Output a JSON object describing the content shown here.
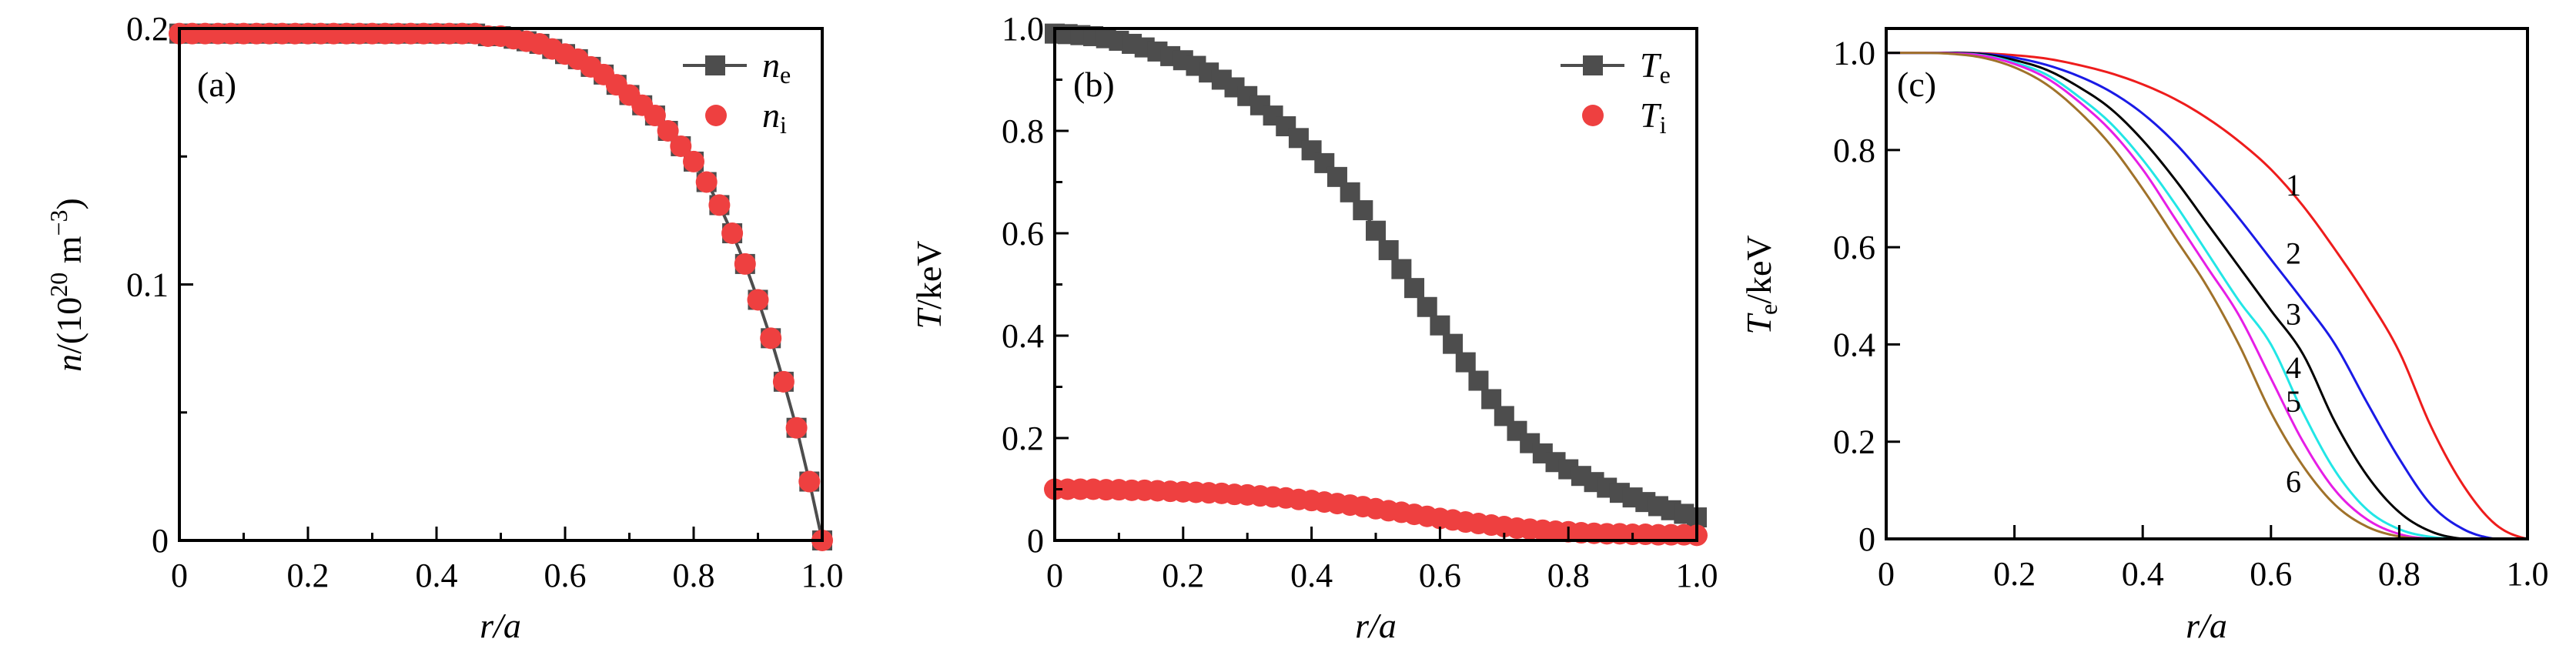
{
  "chart_data": [
    {
      "type": "scatter",
      "panel_label": "(a)",
      "xlabel": "r/a",
      "ylabel": {
        "var": "n",
        "pre": "/(10",
        "exp": "20",
        "unit": " m",
        "uexp": "−3",
        "post": ")"
      },
      "xlim": [
        0,
        1.0
      ],
      "ylim": [
        0,
        0.2
      ],
      "xticks": [
        "0",
        "0.2",
        "0.4",
        "0.6",
        "0.8",
        "1.0"
      ],
      "yticks": [
        "0",
        "0.1",
        "0.2"
      ],
      "x": [
        0,
        0.02,
        0.04,
        0.06,
        0.08,
        0.1,
        0.12,
        0.14,
        0.16,
        0.18,
        0.2,
        0.22,
        0.24,
        0.26,
        0.28,
        0.3,
        0.32,
        0.34,
        0.36,
        0.38,
        0.4,
        0.42,
        0.44,
        0.46,
        0.48,
        0.5,
        0.52,
        0.54,
        0.56,
        0.58,
        0.6,
        0.62,
        0.64,
        0.66,
        0.68,
        0.7,
        0.72,
        0.74,
        0.76,
        0.78,
        0.8,
        0.82,
        0.84,
        0.86,
        0.88,
        0.9,
        0.92,
        0.94,
        0.96,
        0.98,
        1.0
      ],
      "series": [
        {
          "name": "n",
          "sub": "e",
          "marker": "square-line",
          "color": "#4d4d4d",
          "values": [
            0.198,
            0.198,
            0.198,
            0.198,
            0.198,
            0.198,
            0.198,
            0.198,
            0.198,
            0.198,
            0.198,
            0.198,
            0.198,
            0.198,
            0.198,
            0.198,
            0.198,
            0.198,
            0.198,
            0.198,
            0.198,
            0.198,
            0.198,
            0.198,
            0.197,
            0.197,
            0.196,
            0.195,
            0.194,
            0.192,
            0.19,
            0.188,
            0.185,
            0.182,
            0.178,
            0.174,
            0.17,
            0.166,
            0.16,
            0.154,
            0.148,
            0.14,
            0.131,
            0.12,
            0.108,
            0.094,
            0.079,
            0.062,
            0.044,
            0.023,
            0.0
          ]
        },
        {
          "name": "n",
          "sub": "i",
          "marker": "circle",
          "color": "#ee4040",
          "values": [
            0.198,
            0.198,
            0.198,
            0.198,
            0.198,
            0.198,
            0.198,
            0.198,
            0.198,
            0.198,
            0.198,
            0.198,
            0.198,
            0.198,
            0.198,
            0.198,
            0.198,
            0.198,
            0.198,
            0.198,
            0.198,
            0.198,
            0.198,
            0.198,
            0.197,
            0.197,
            0.196,
            0.195,
            0.194,
            0.192,
            0.19,
            0.188,
            0.185,
            0.182,
            0.178,
            0.174,
            0.17,
            0.166,
            0.16,
            0.154,
            0.148,
            0.14,
            0.131,
            0.12,
            0.108,
            0.094,
            0.079,
            0.062,
            0.044,
            0.023,
            0.0
          ]
        }
      ],
      "legend": "top-right"
    },
    {
      "type": "scatter",
      "panel_label": "(b)",
      "xlabel": "r/a",
      "ylabel": {
        "var": "T",
        "post": "/keV"
      },
      "xlim": [
        0,
        1.0
      ],
      "ylim": [
        0,
        1.0
      ],
      "xticks": [
        "0",
        "0.2",
        "0.4",
        "0.6",
        "0.8",
        "1.0"
      ],
      "yticks": [
        "0",
        "0.2",
        "0.4",
        "0.6",
        "0.8",
        "1.0"
      ],
      "x": [
        0,
        0.02,
        0.04,
        0.06,
        0.08,
        0.1,
        0.12,
        0.14,
        0.16,
        0.18,
        0.2,
        0.22,
        0.24,
        0.26,
        0.28,
        0.3,
        0.32,
        0.34,
        0.36,
        0.38,
        0.4,
        0.42,
        0.44,
        0.46,
        0.48,
        0.5,
        0.52,
        0.54,
        0.56,
        0.58,
        0.6,
        0.62,
        0.64,
        0.66,
        0.68,
        0.7,
        0.72,
        0.74,
        0.76,
        0.78,
        0.8,
        0.82,
        0.84,
        0.86,
        0.88,
        0.9,
        0.92,
        0.94,
        0.96,
        0.98,
        1.0
      ],
      "series": [
        {
          "name": "T",
          "sub": "e",
          "marker": "square-line",
          "color": "#4d4d4d",
          "values": [
            0.99,
            0.989,
            0.987,
            0.985,
            0.981,
            0.976,
            0.97,
            0.963,
            0.955,
            0.946,
            0.938,
            0.927,
            0.914,
            0.9,
            0.885,
            0.868,
            0.85,
            0.83,
            0.809,
            0.786,
            0.762,
            0.737,
            0.71,
            0.68,
            0.645,
            0.605,
            0.567,
            0.53,
            0.493,
            0.456,
            0.42,
            0.384,
            0.348,
            0.312,
            0.276,
            0.243,
            0.214,
            0.19,
            0.17,
            0.153,
            0.139,
            0.126,
            0.114,
            0.103,
            0.093,
            0.084,
            0.075,
            0.067,
            0.059,
            0.052,
            0.045
          ]
        },
        {
          "name": "T",
          "sub": "i",
          "marker": "circle",
          "color": "#ee4040",
          "values": [
            0.1,
            0.1,
            0.1,
            0.1,
            0.099,
            0.099,
            0.098,
            0.098,
            0.097,
            0.096,
            0.095,
            0.094,
            0.093,
            0.092,
            0.09,
            0.089,
            0.087,
            0.085,
            0.083,
            0.08,
            0.078,
            0.075,
            0.072,
            0.069,
            0.066,
            0.062,
            0.058,
            0.055,
            0.051,
            0.047,
            0.043,
            0.04,
            0.036,
            0.033,
            0.03,
            0.027,
            0.024,
            0.022,
            0.02,
            0.018,
            0.017,
            0.015,
            0.014,
            0.013,
            0.013,
            0.012,
            0.012,
            0.011,
            0.011,
            0.011,
            0.01
          ]
        }
      ],
      "legend": "top-right"
    },
    {
      "type": "line",
      "panel_label": "(c)",
      "xlabel": "r/a",
      "ylabel": {
        "var": "T",
        "sub": "e",
        "post": "/keV"
      },
      "xlim": [
        0,
        1.0
      ],
      "ylim": [
        0,
        1.05
      ],
      "xticks": [
        "0",
        "0.2",
        "0.4",
        "0.6",
        "0.8",
        "1.0"
      ],
      "yticks": [
        "0",
        "0.2",
        "0.4",
        "0.6",
        "0.8",
        "1.0"
      ],
      "x": [
        0,
        0.05,
        0.1,
        0.15,
        0.2,
        0.25,
        0.3,
        0.35,
        0.4,
        0.45,
        0.5,
        0.55,
        0.6,
        0.65,
        0.7,
        0.75,
        0.8,
        0.85,
        0.9,
        0.95,
        1.0
      ],
      "series": [
        {
          "name": "1",
          "color": "#ee1c1c",
          "values": [
            1,
            1,
            1,
            0.999,
            0.995,
            0.988,
            0.975,
            0.958,
            0.935,
            0.905,
            0.866,
            0.818,
            0.76,
            0.685,
            0.595,
            0.497,
            0.385,
            0.23,
            0.11,
            0.03,
            0
          ]
        },
        {
          "name": "2",
          "color": "#1a1ae6",
          "values": [
            1,
            1,
            1,
            0.998,
            0.99,
            0.975,
            0.952,
            0.92,
            0.875,
            0.815,
            0.74,
            0.66,
            0.575,
            0.49,
            0.4,
            0.28,
            0.165,
            0.07,
            0.02,
            0,
            0
          ]
        },
        {
          "name": "3",
          "color": "#000000",
          "values": [
            1,
            1,
            1,
            0.997,
            0.985,
            0.965,
            0.93,
            0.885,
            0.82,
            0.74,
            0.65,
            0.56,
            0.47,
            0.38,
            0.24,
            0.13,
            0.055,
            0.015,
            0,
            0,
            0
          ]
        },
        {
          "name": "4",
          "color": "#22e6e6",
          "values": [
            1,
            1,
            0.999,
            0.995,
            0.98,
            0.955,
            0.91,
            0.855,
            0.78,
            0.69,
            0.59,
            0.49,
            0.4,
            0.26,
            0.14,
            0.06,
            0.02,
            0.004,
            0,
            0,
            0
          ]
        },
        {
          "name": "5",
          "color": "#e61ee6",
          "values": [
            1,
            1,
            0.999,
            0.994,
            0.977,
            0.948,
            0.9,
            0.84,
            0.76,
            0.66,
            0.56,
            0.46,
            0.33,
            0.2,
            0.1,
            0.04,
            0.01,
            0,
            0,
            0,
            0
          ]
        },
        {
          "name": "6",
          "color": "#a0722a",
          "values": [
            1,
            1,
            0.998,
            0.99,
            0.97,
            0.935,
            0.88,
            0.81,
            0.72,
            0.62,
            0.52,
            0.4,
            0.26,
            0.15,
            0.07,
            0.025,
            0.005,
            0,
            0,
            0,
            0
          ]
        }
      ]
    }
  ]
}
